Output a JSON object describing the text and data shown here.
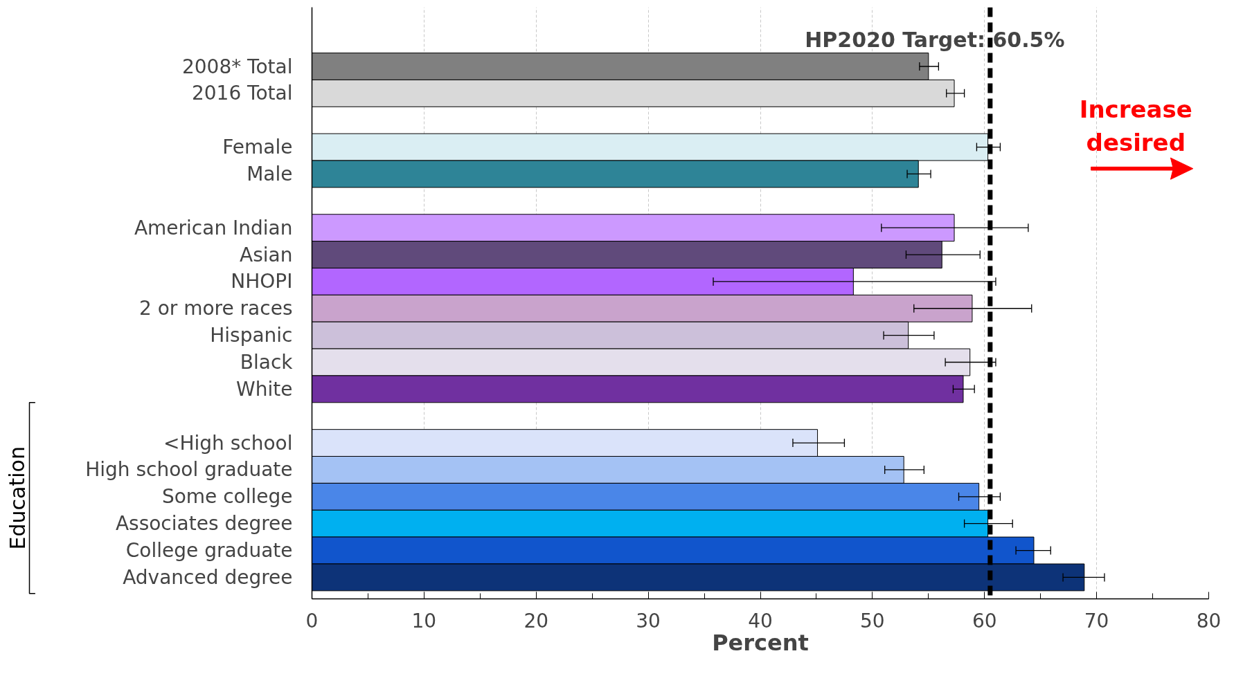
{
  "chart_data": {
    "type": "bar",
    "orientation": "horizontal",
    "xlabel": "Percent",
    "categories": [
      "2008* Total",
      "2016 Total",
      null,
      "Female",
      "Male",
      null,
      "American Indian",
      "Asian",
      "NHOPI",
      "2 or more races",
      "Hispanic",
      "Black",
      "White",
      null,
      "<High school",
      "High school graduate",
      "Some college",
      "Associates degree",
      "College graduate",
      "Advanced degree"
    ],
    "values": [
      55.0,
      57.3,
      null,
      60.3,
      54.1,
      null,
      57.3,
      56.2,
      48.3,
      58.9,
      53.2,
      58.7,
      58.1,
      null,
      45.1,
      52.8,
      59.5,
      60.3,
      64.4,
      68.9
    ],
    "colors": [
      "#808080",
      "#d9d9d9",
      null,
      "#daeef3",
      "#2e8497",
      null,
      "#cc99ff",
      "#604a7b",
      "#b266ff",
      "#c9a3cc",
      "#ccc0da",
      "#e4dfec",
      "#7030a0",
      null,
      "#dae3fa",
      "#a4c2f4",
      "#4a86e8",
      "#00b0f0",
      "#1155cc",
      "#0d3378"
    ],
    "errors": [
      [
        54.2,
        55.9
      ],
      [
        56.6,
        58.2
      ],
      null,
      [
        59.3,
        61.4
      ],
      [
        53.1,
        55.2
      ],
      null,
      [
        50.8,
        63.9
      ],
      [
        53.0,
        59.6
      ],
      [
        35.8,
        61.0
      ],
      [
        53.7,
        64.2
      ],
      [
        51.0,
        55.5
      ],
      [
        56.5,
        61.0
      ],
      [
        57.2,
        59.1
      ],
      null,
      [
        42.9,
        47.5
      ],
      [
        51.1,
        54.6
      ],
      [
        57.7,
        61.4
      ],
      [
        58.2,
        62.5
      ],
      [
        62.8,
        65.9
      ],
      [
        67.0,
        70.7
      ]
    ],
    "xlim": [
      0,
      80
    ],
    "xticks": [
      0,
      10,
      20,
      30,
      40,
      50,
      60,
      70,
      80
    ],
    "grid": "x",
    "ref_lines": [
      {
        "axis": "x",
        "value": 60.5,
        "label": "HP2020 Target: 60.5%",
        "color": "#000000",
        "line_style": "dashed"
      }
    ],
    "annotations": [
      "Increase desired",
      "Education"
    ]
  }
}
